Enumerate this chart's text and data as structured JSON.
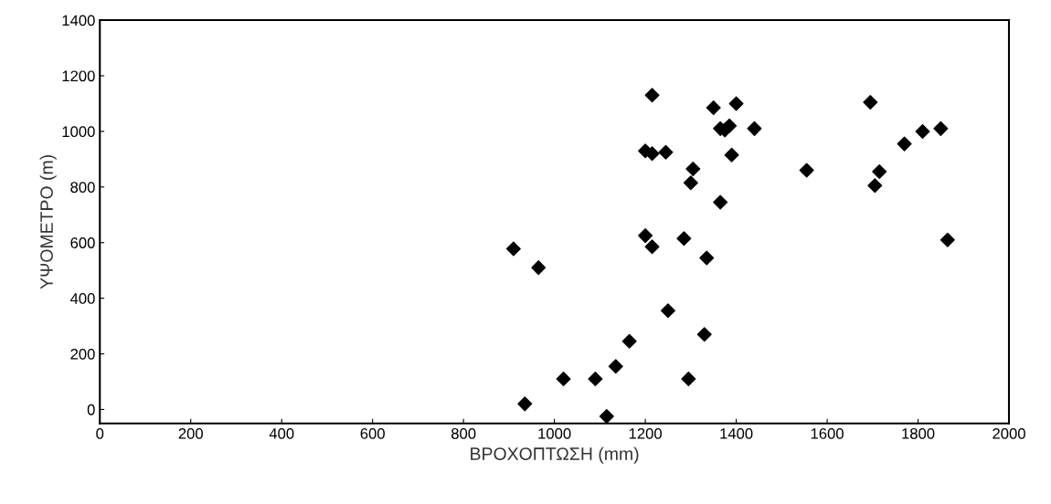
{
  "chart_data": {
    "type": "scatter",
    "xlabel": "ΒΡΟΧΟΠΤΩΣΗ (mm)",
    "ylabel": "ΥΨΟΜΕΤΡΟ (m)",
    "x": [
      910,
      965,
      935,
      1020,
      1090,
      1115,
      1135,
      1165,
      1200,
      1200,
      1215,
      1215,
      1215,
      1245,
      1250,
      1285,
      1295,
      1300,
      1305,
      1330,
      1335,
      1350,
      1365,
      1365,
      1375,
      1385,
      1390,
      1400,
      1440,
      1555,
      1695,
      1705,
      1715,
      1770,
      1810,
      1850,
      1865
    ],
    "values": [
      578,
      510,
      20,
      110,
      110,
      -25,
      155,
      245,
      930,
      625,
      1130,
      920,
      585,
      925,
      355,
      615,
      110,
      815,
      865,
      270,
      545,
      1085,
      745,
      1010,
      1005,
      1020,
      915,
      1100,
      1010,
      860,
      1105,
      805,
      855,
      955,
      1000,
      1010,
      610
    ],
    "color": "#000000",
    "marker": "diamond",
    "grid": false,
    "xlim": [
      0,
      2000
    ],
    "xticks": [
      0,
      200,
      400,
      600,
      800,
      1000,
      1200,
      1400,
      1600,
      1800,
      2000
    ],
    "ylim": [
      -50,
      1400
    ],
    "yticks": [
      0,
      200,
      400,
      600,
      800,
      1000,
      1200,
      1400
    ]
  }
}
